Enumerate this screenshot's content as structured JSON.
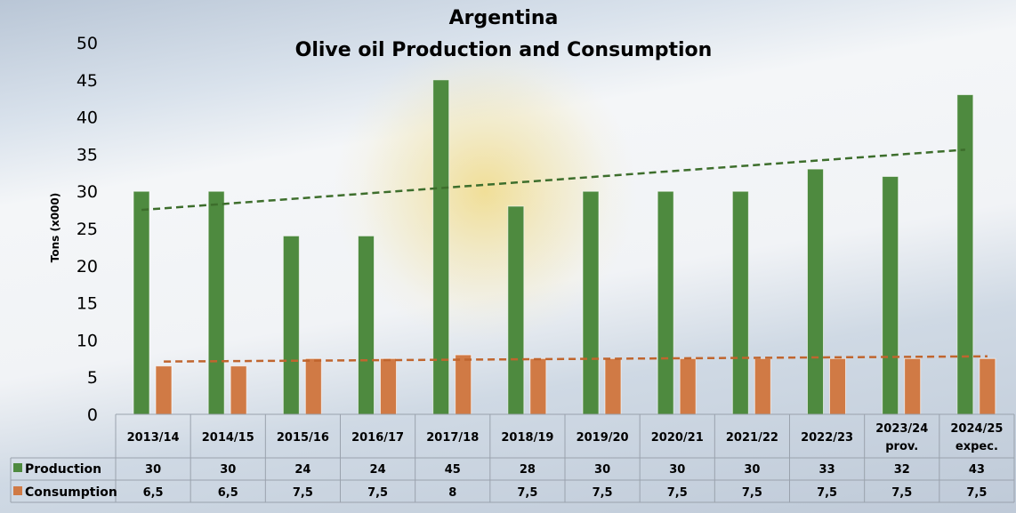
{
  "chart_data": {
    "type": "bar",
    "title": "Argentina",
    "subtitle": "Olive oil Production and Consumption",
    "xlabel": "",
    "ylabel": "Tons (x000)",
    "ylim": [
      0,
      50
    ],
    "yticks": [
      0,
      5,
      10,
      15,
      20,
      25,
      30,
      35,
      40,
      45,
      50
    ],
    "grid": false,
    "legend": "data-table",
    "categories": [
      "2013/14",
      "2014/15",
      "2015/16",
      "2016/17",
      "2017/18",
      "2018/19",
      "2019/20",
      "2020/21",
      "2021/22",
      "2022/23",
      "2023/24",
      "2024/25"
    ],
    "category_notes": [
      "",
      "",
      "",
      "",
      "",
      "",
      "",
      "",
      "",
      "",
      "prov.",
      "expec."
    ],
    "series": [
      {
        "name": "Production",
        "color": "#4e8a3f",
        "values": [
          30,
          30,
          24,
          24,
          45,
          28,
          30,
          30,
          30,
          33,
          32,
          43
        ],
        "labels": [
          "30",
          "30",
          "24",
          "24",
          "45",
          "28",
          "30",
          "30",
          "30",
          "33",
          "32",
          "43"
        ],
        "trendline": {
          "color": "#3d6e2c",
          "start": 27.5,
          "end": 35.6
        }
      },
      {
        "name": "Consumption",
        "color": "#d07a45",
        "values": [
          6.5,
          6.5,
          7.5,
          7.5,
          8,
          7.5,
          7.5,
          7.5,
          7.5,
          7.5,
          7.5,
          7.5
        ],
        "labels": [
          "6,5",
          "6,5",
          "7,5",
          "7,5",
          "8",
          "7,5",
          "7,5",
          "7,5",
          "7,5",
          "7,5",
          "7,5",
          "7,5"
        ],
        "trendline": {
          "color": "#c0652e",
          "start": 7.1,
          "end": 7.8
        }
      }
    ]
  }
}
